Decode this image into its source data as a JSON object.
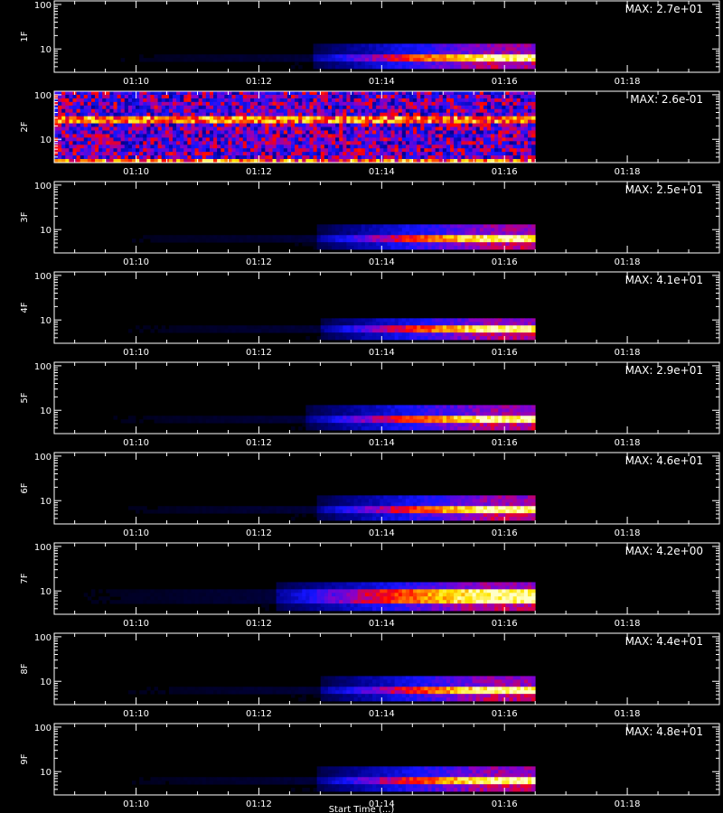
{
  "chart_data": {
    "type": "heatmap",
    "x_range": [
      "01:08:40",
      "01:19:30"
    ],
    "x_ticks": [
      "01:10",
      "01:12",
      "01:14",
      "01:16",
      "01:18"
    ],
    "data_end_time": "01:16:30",
    "y_scale": "log",
    "y_range": [
      3,
      120
    ],
    "y_ticks": [
      "10",
      "100"
    ],
    "colormap": [
      "#000000",
      "#00008c",
      "#1414ff",
      "#8c00c8",
      "#ff0000",
      "#ff7800",
      "#ffe600",
      "#ffffc8"
    ],
    "x_axis_caption": "Start Time (...)",
    "panels": [
      {
        "ylabel": "1F",
        "max_label": "MAX: 2.7e+01",
        "pattern": "burst",
        "onset": "01:13:45",
        "peak_band": [
          5,
          8
        ]
      },
      {
        "ylabel": "2F",
        "max_label": "MAX: 2.6e-01",
        "pattern": "noise",
        "bands": [
          25,
          35
        ]
      },
      {
        "ylabel": "3F",
        "max_label": "MAX: 2.5e+01",
        "pattern": "burst",
        "onset": "01:13:50",
        "peak_band": [
          5,
          8
        ]
      },
      {
        "ylabel": "4F",
        "max_label": "MAX: 4.1e+01",
        "pattern": "burst",
        "onset": "01:13:55",
        "peak_band": [
          5,
          7
        ]
      },
      {
        "ylabel": "5F",
        "max_label": "MAX: 2.9e+01",
        "pattern": "burst",
        "onset": "01:13:40",
        "peak_band": [
          5,
          8
        ]
      },
      {
        "ylabel": "6F",
        "max_label": "MAX: 4.6e+01",
        "pattern": "burst",
        "onset": "01:13:50",
        "peak_band": [
          5,
          8
        ]
      },
      {
        "ylabel": "7F",
        "max_label": "MAX: 4.2e+00",
        "pattern": "burst",
        "onset": "01:13:10",
        "peak_band": [
          5,
          10
        ]
      },
      {
        "ylabel": "8F",
        "max_label": "MAX: 4.4e+01",
        "pattern": "burst",
        "onset": "01:13:55",
        "peak_band": [
          5,
          8
        ]
      },
      {
        "ylabel": "9F",
        "max_label": "MAX: 4.8e+01",
        "pattern": "burst",
        "onset": "01:13:50",
        "peak_band": [
          5,
          8
        ]
      }
    ]
  }
}
